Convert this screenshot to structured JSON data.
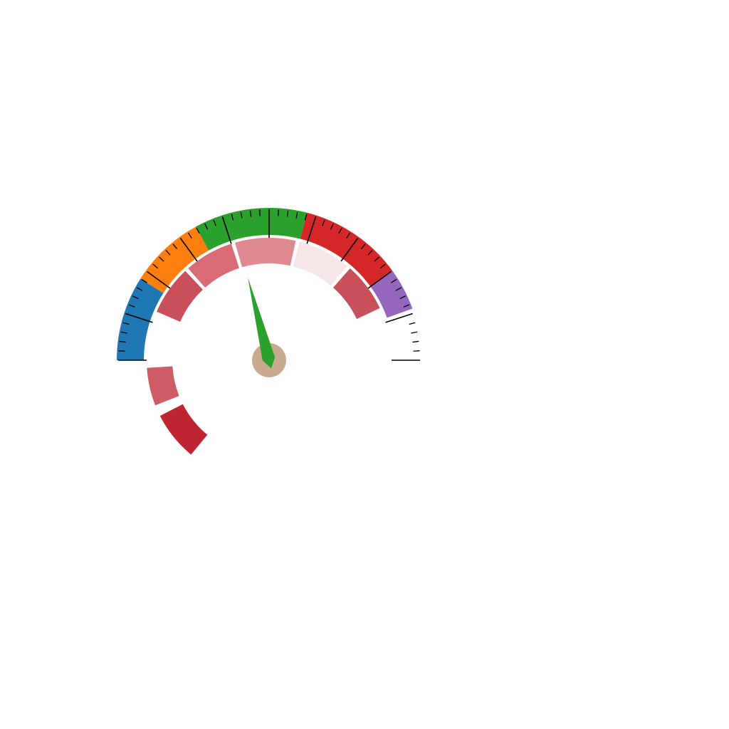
{
  "chart_data": {
    "type": "gauge",
    "title": "",
    "scale": {
      "min": 0,
      "max": 100,
      "unit": "",
      "start_angle_deg": -90,
      "end_angle_deg": 90
    },
    "outer_bands": [
      {
        "from": 0,
        "to": 18,
        "color": "#1f77b4"
      },
      {
        "from": 18,
        "to": 34,
        "color": "#ff7f0e"
      },
      {
        "from": 34,
        "to": 58,
        "color": "#2ca02c"
      },
      {
        "from": 58,
        "to": 80,
        "color": "#d62728"
      },
      {
        "from": 80,
        "to": 89,
        "color": "#9467bd"
      }
    ],
    "inner_bands": [
      {
        "from": -28,
        "to": -15,
        "color": "#bf2530"
      },
      {
        "from": -12,
        "to": -2,
        "color": "#cd5c65"
      },
      {
        "from": 13,
        "to": 26,
        "color": "#c9505b"
      },
      {
        "from": 27,
        "to": 40,
        "color": "#d86b74"
      },
      {
        "from": 41,
        "to": 57,
        "color": "#de8a90"
      },
      {
        "from": 58,
        "to": 72,
        "color": "#f7e6e8"
      },
      {
        "from": 73,
        "to": 86,
        "color": "#c9505b"
      }
    ],
    "ticks": {
      "major_step": 10,
      "minor_step": 2
    },
    "needle": {
      "value": 42,
      "color": "#2ca02c"
    },
    "hub_color": "#c9a990"
  }
}
